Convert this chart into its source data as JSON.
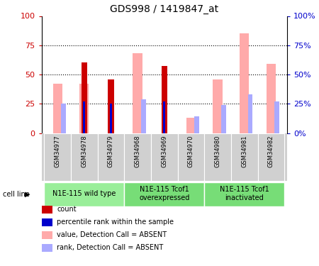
{
  "title": "GDS998 / 1419847_at",
  "samples": [
    "GSM34977",
    "GSM34978",
    "GSM34979",
    "GSM34968",
    "GSM34969",
    "GSM34970",
    "GSM34980",
    "GSM34981",
    "GSM34982"
  ],
  "count_values": [
    0,
    60,
    46,
    0,
    57,
    0,
    0,
    0,
    0
  ],
  "percentile_values": [
    0,
    27,
    25,
    0,
    27,
    0,
    0,
    0,
    0
  ],
  "absent_value_values": [
    42,
    42,
    0,
    68,
    0,
    13,
    46,
    85,
    59
  ],
  "absent_rank_values": [
    25,
    0,
    0,
    29,
    0,
    14,
    24,
    33,
    27
  ],
  "groups": [
    {
      "label": "N1E-115 wild type",
      "indices": [
        0,
        1,
        2
      ],
      "color": "#99ee99"
    },
    {
      "label": "N1E-115 Tcof1\noverexpressed",
      "indices": [
        3,
        4,
        5
      ],
      "color": "#77dd77"
    },
    {
      "label": "N1E-115 Tcof1\ninactivated",
      "indices": [
        6,
        7,
        8
      ],
      "color": "#77dd77"
    }
  ],
  "count_color": "#cc0000",
  "percentile_color": "#0000cc",
  "absent_value_color": "#ffaaaa",
  "absent_rank_color": "#aaaaff",
  "ylim": [
    0,
    100
  ],
  "yticks": [
    0,
    25,
    50,
    75,
    100
  ],
  "ytick_color_left": "#cc0000",
  "ytick_color_right": "#0000cc",
  "cell_line_label": "cell line",
  "legend_items": [
    {
      "label": "count",
      "color": "#cc0000"
    },
    {
      "label": "percentile rank within the sample",
      "color": "#0000cc"
    },
    {
      "label": "value, Detection Call = ABSENT",
      "color": "#ffaaaa"
    },
    {
      "label": "rank, Detection Call = ABSENT",
      "color": "#aaaaff"
    }
  ]
}
